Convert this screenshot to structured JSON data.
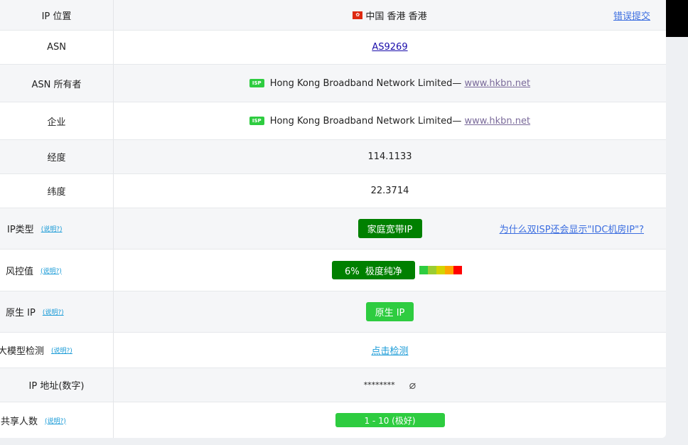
{
  "rows": [
    {
      "label": "IP 位置",
      "flag": "hk-flag-icon",
      "value": "中国 香港 香港",
      "side_link": "错误提交"
    },
    {
      "label": "ASN",
      "value": "AS9269"
    },
    {
      "label": "ASN 所有者",
      "badge": "ISP",
      "value": "Hong Kong Broadband Network Limited—",
      "site": "www.hkbn.net"
    },
    {
      "label": "企业",
      "badge": "ISP",
      "value": "Hong Kong Broadband Network Limited—",
      "site": "www.hkbn.net"
    },
    {
      "label": "经度",
      "value": "114.1133"
    },
    {
      "label": "纬度",
      "value": "22.3714"
    },
    {
      "label": "IP类型",
      "note": "(说明?)",
      "value": "家庭宽带IP",
      "side_link": "为什么双ISP还会显示\"IDC机房IP\"?"
    },
    {
      "label": "风控值",
      "note": "(说明?)",
      "value": "6%  极度纯净",
      "risk_percent": 6
    },
    {
      "label": "原生 IP",
      "note": "(说明?)",
      "value": "原生 IP"
    },
    {
      "label": "大模型检测",
      "note": "(说明?)",
      "value": "点击检测"
    },
    {
      "label": "IP 地址(数字)",
      "value": "********",
      "icon": "eye-off-icon"
    },
    {
      "label": "共享人数",
      "note": "(说明?)",
      "value": "1 - 10 (极好)"
    }
  ],
  "colors": {
    "dark_green": "#008000",
    "green": "#2ecc40",
    "risk_scale": [
      "#2ecc40",
      "#9acd32",
      "#d4d400",
      "#ffa500",
      "#ff0000"
    ]
  }
}
